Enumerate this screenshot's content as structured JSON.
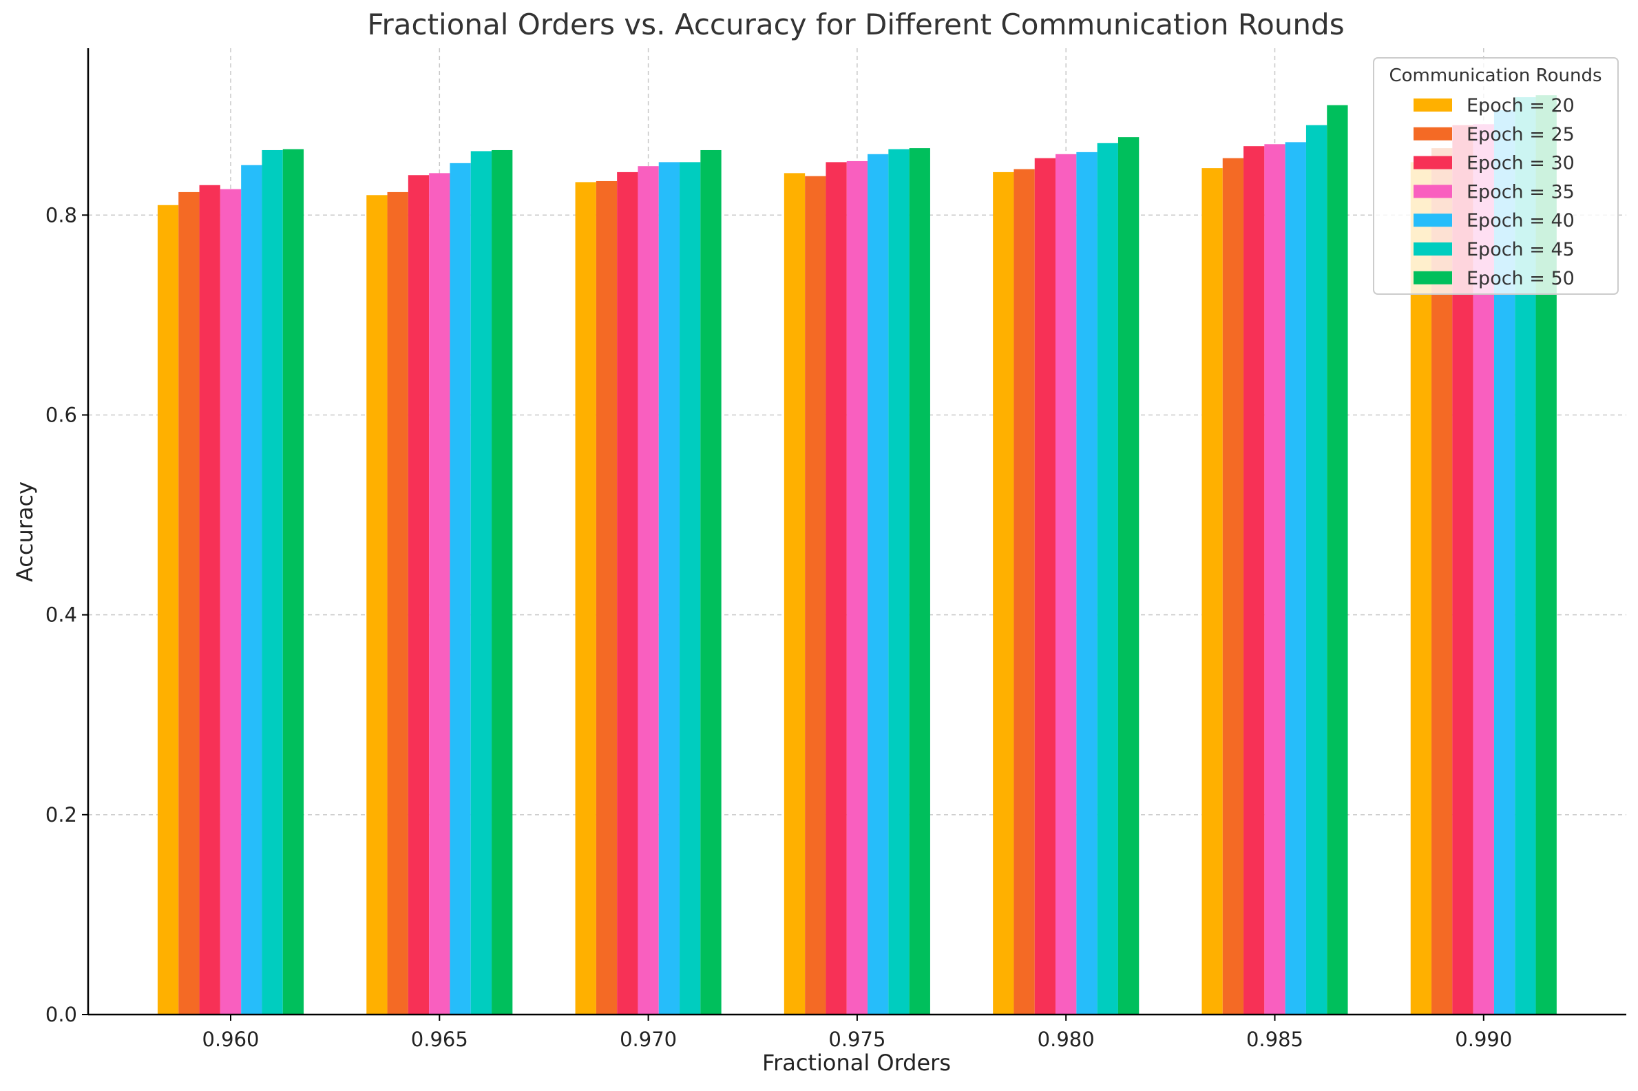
{
  "chart_data": {
    "type": "bar",
    "title": "Fractional Orders vs. Accuracy for Different Communication Rounds",
    "xlabel": "Fractional Orders",
    "ylabel": "Accuracy",
    "categories": [
      "0.960",
      "0.965",
      "0.970",
      "0.975",
      "0.980",
      "0.985",
      "0.990"
    ],
    "ylim": [
      0,
      0.967
    ],
    "yticks": [
      "0.0",
      "0.2",
      "0.4",
      "0.6",
      "0.8"
    ],
    "grid": true,
    "legend": {
      "title": "Communication Rounds",
      "placement": "top-right"
    },
    "series": [
      {
        "name": "Epoch = 20",
        "color": "#FFB000",
        "values": [
          0.81,
          0.82,
          0.833,
          0.842,
          0.843,
          0.847,
          0.853
        ]
      },
      {
        "name": "Epoch = 25",
        "color": "#F46A25",
        "values": [
          0.823,
          0.823,
          0.834,
          0.839,
          0.846,
          0.857,
          0.867
        ]
      },
      {
        "name": "Epoch = 30",
        "color": "#F73156",
        "values": [
          0.83,
          0.84,
          0.843,
          0.853,
          0.857,
          0.869,
          0.89
        ]
      },
      {
        "name": "Epoch = 35",
        "color": "#F95FBF",
        "values": [
          0.826,
          0.842,
          0.849,
          0.854,
          0.861,
          0.871,
          0.891
        ]
      },
      {
        "name": "Epoch = 40",
        "color": "#26BDFA",
        "values": [
          0.85,
          0.852,
          0.853,
          0.861,
          0.863,
          0.873,
          0.905
        ]
      },
      {
        "name": "Epoch = 45",
        "color": "#00CDBF",
        "values": [
          0.865,
          0.864,
          0.853,
          0.866,
          0.872,
          0.89,
          0.918
        ]
      },
      {
        "name": "Epoch = 50",
        "color": "#00BF5C",
        "values": [
          0.866,
          0.865,
          0.865,
          0.867,
          0.878,
          0.91,
          0.92
        ]
      }
    ]
  }
}
